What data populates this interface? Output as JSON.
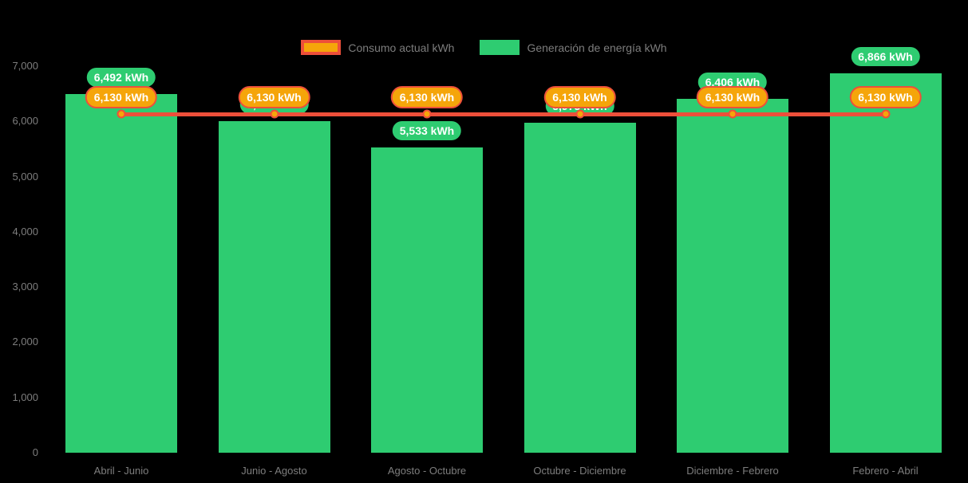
{
  "legend": {
    "items": [
      {
        "label": "Consumo actual kWh"
      },
      {
        "label": "Generación de energía kWh"
      }
    ]
  },
  "chart_data": {
    "type": "bar",
    "categories": [
      "Abril - Junio",
      "Junio - Agosto",
      "Agosto - Octubre",
      "Octubre - Diciembre",
      "Diciembre - Febrero",
      "Febrero - Abril"
    ],
    "series": [
      {
        "name": "Generación de energía kWh",
        "type": "bar",
        "color": "#2ecc71",
        "values": [
          6492,
          5999,
          5533,
          5975,
          6406,
          6866
        ],
        "data_labels": [
          "6,492 kWh",
          "5,999 kWh",
          "5,533 kWh",
          "5,975 kWh",
          "6,406 kWh",
          "6,866 kWh"
        ]
      },
      {
        "name": "Consumo actual kWh",
        "type": "line",
        "color": "#ed4f3a",
        "marker_color": "#f5a50a",
        "values": [
          6130,
          6130,
          6130,
          6130,
          6130,
          6130
        ],
        "data_labels": [
          "6,130 kWh",
          "6,130 kWh",
          "6,130 kWh",
          "6,130 kWh",
          "6,130 kWh",
          "6,130 kWh"
        ]
      }
    ],
    "yticks": [
      {
        "label": "7,000",
        "value": 7000
      },
      {
        "label": "6,000",
        "value": 6000
      },
      {
        "label": "5,000",
        "value": 5000
      },
      {
        "label": "4,000",
        "value": 4000
      },
      {
        "label": "3,000",
        "value": 3000
      },
      {
        "label": "2,000",
        "value": 2000
      },
      {
        "label": "1,000",
        "value": 1000
      },
      {
        "label": "0",
        "value": 0
      }
    ],
    "ylim": [
      0,
      7400
    ],
    "grid": false,
    "legend_position": "top",
    "background": "#000000"
  }
}
